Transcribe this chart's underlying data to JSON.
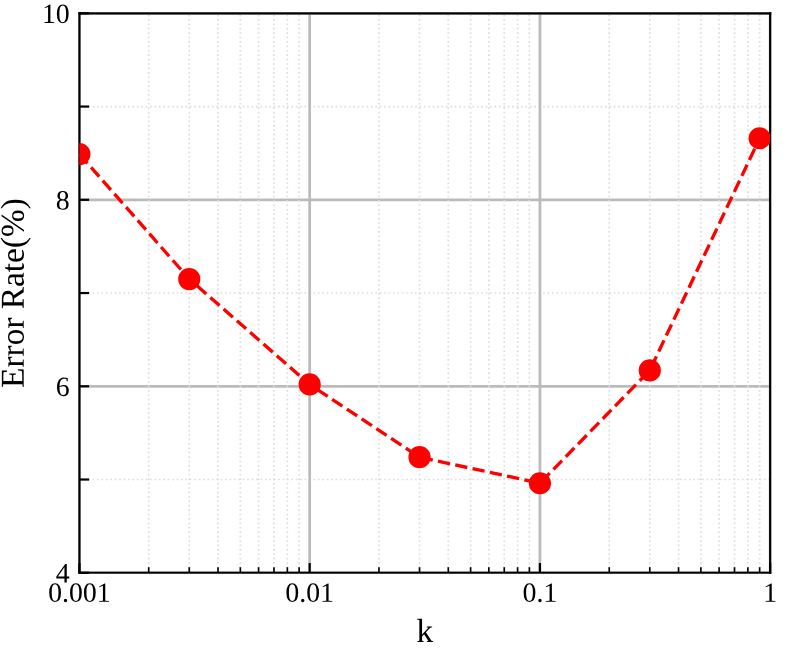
{
  "chart_data": {
    "type": "line",
    "xlabel": "k",
    "ylabel": "Error Rate(%)",
    "log": "x",
    "x": [
      0.001,
      0.003,
      0.01,
      0.03,
      0.1,
      0.3,
      0.9
    ],
    "series": [
      {
        "color": "#ff0000",
        "values": [
          8.49,
          7.15,
          6.02,
          5.24,
          4.96,
          6.17,
          8.66
        ]
      }
    ],
    "xlim": [
      0.001,
      1
    ],
    "xticks": [
      0.001,
      0.01,
      0.1,
      1
    ],
    "ylim": [
      4,
      10
    ],
    "yticks": [
      4,
      {
        "value": 5,
        "label": null
      },
      6,
      {
        "value": 7,
        "label": null
      },
      8,
      {
        "value": 9,
        "label": null
      },
      10
    ],
    "grid": true,
    "marker": "circle",
    "line_style": "dashed"
  }
}
